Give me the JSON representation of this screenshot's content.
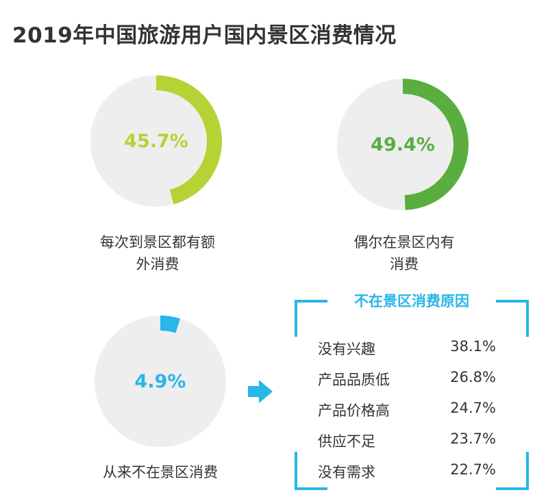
{
  "title": "2019年中国旅游用户国内景区消费情况",
  "chart_data": [
    {
      "type": "pie",
      "value_percent": 45.7,
      "label": "45.7%",
      "caption": [
        "每次到景区都有额",
        "外消费"
      ],
      "color": "#b5d334"
    },
    {
      "type": "pie",
      "value_percent": 49.4,
      "label": "49.4%",
      "caption": [
        "偶尔在景区内有",
        "消费"
      ],
      "color": "#5aae3f"
    },
    {
      "type": "pie",
      "value_percent": 4.9,
      "label": "4.9%",
      "caption": [
        "从来不在景区消费"
      ],
      "color": "#29b6e8"
    },
    {
      "type": "table",
      "title": "不在景区消费原因",
      "rows": [
        {
          "label": "没有兴趣",
          "value": "38.1%"
        },
        {
          "label": "产品品质低",
          "value": "26.8%"
        },
        {
          "label": "产品价格高",
          "value": "24.7%"
        },
        {
          "label": "供应不足",
          "value": "23.7%"
        },
        {
          "label": "没有需求",
          "value": "22.7%"
        }
      ]
    }
  ],
  "colors": {
    "track": "#eeeeee",
    "accent_blue": "#29b6e8"
  },
  "icons": {
    "arrow": "arrow-right-icon"
  }
}
